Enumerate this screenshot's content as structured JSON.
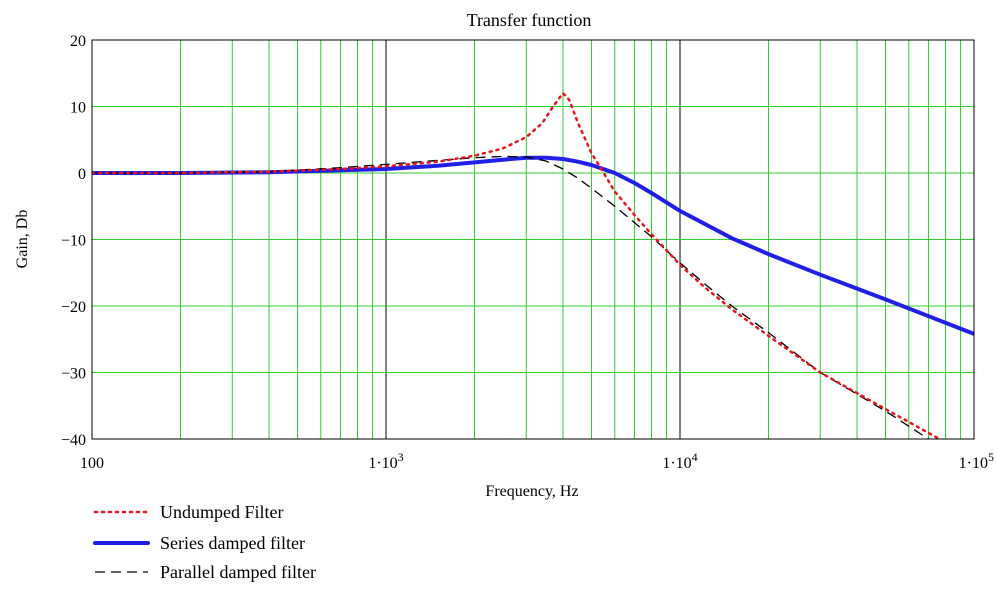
{
  "chart_data": {
    "type": "line",
    "title": "Transfer function",
    "xlabel": "Frequency, Hz",
    "ylabel": "Gain, Db",
    "x_scale": "log",
    "xlim": [
      100,
      100000
    ],
    "ylim": [
      -40,
      20
    ],
    "y_ticks": [
      "20",
      "10",
      "0",
      "−10",
      "−20",
      "−30",
      "−40"
    ],
    "x_ticks": [
      {
        "value": 100,
        "label": "100",
        "exp": ""
      },
      {
        "value": 1000,
        "label": "1·10",
        "exp": "3"
      },
      {
        "value": 10000,
        "label": "1·10",
        "exp": "4"
      },
      {
        "value": 100000,
        "label": "1·10",
        "exp": "5"
      }
    ],
    "grid": true,
    "legend_position": "bottom-left",
    "series": [
      {
        "name": "Undumped Filter",
        "color": "#e8141b",
        "style": "dotted",
        "x": [
          100,
          200,
          400,
          700,
          1000,
          1500,
          2000,
          2500,
          3000,
          3400,
          3700,
          4000,
          4200,
          4500,
          5000,
          5500,
          6000,
          7000,
          8000,
          10000,
          12000,
          15000,
          20000,
          30000,
          50000,
          80000
        ],
        "y": [
          0,
          0,
          0.2,
          0.6,
          1.0,
          1.7,
          2.6,
          3.7,
          5.4,
          7.5,
          10.0,
          12.0,
          11.0,
          7.5,
          3.0,
          0.0,
          -2.8,
          -6.3,
          -9.2,
          -13.8,
          -17.0,
          -20.5,
          -24.5,
          -30.0,
          -35.5,
          -40.5
        ]
      },
      {
        "name": "Series damped filter",
        "color": "#1f1fe6",
        "style": "solid",
        "x": [
          100,
          200,
          400,
          700,
          1000,
          1500,
          2000,
          2500,
          3000,
          3500,
          4000,
          4500,
          5000,
          6000,
          7000,
          8000,
          10000,
          15000,
          20000,
          30000,
          50000,
          100000
        ],
        "y": [
          0,
          0,
          0.1,
          0.4,
          0.6,
          1.1,
          1.6,
          2.0,
          2.3,
          2.3,
          2.1,
          1.7,
          1.2,
          0.0,
          -1.5,
          -3.0,
          -5.7,
          -9.8,
          -12.2,
          -15.3,
          -19.0,
          -24.2
        ]
      },
      {
        "name": "Parallel damped filter",
        "color": "#000000",
        "style": "dashed",
        "x": [
          100,
          200,
          400,
          700,
          1000,
          1500,
          2000,
          2500,
          3000,
          3500,
          4000,
          4500,
          5000,
          6000,
          8000,
          10000,
          12000,
          15000,
          20000,
          30000,
          50000,
          70000
        ],
        "y": [
          0,
          0,
          0.2,
          0.8,
          1.3,
          1.9,
          2.3,
          2.5,
          2.4,
          1.8,
          0.6,
          -0.8,
          -2.3,
          -5.0,
          -9.6,
          -13.5,
          -16.5,
          -20.0,
          -24.0,
          -30.0,
          -35.8,
          -40.0
        ]
      }
    ]
  }
}
